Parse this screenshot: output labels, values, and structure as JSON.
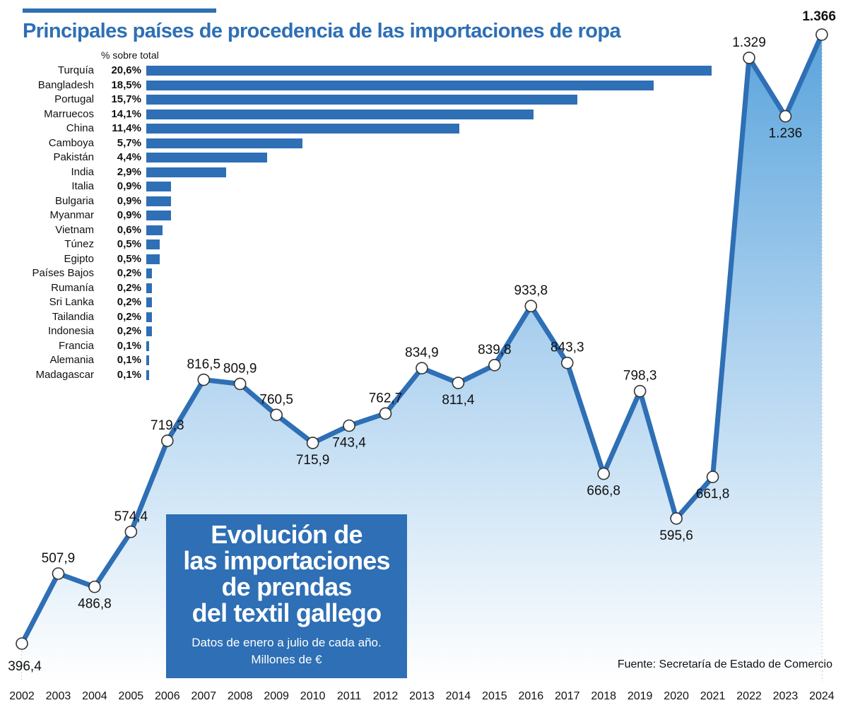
{
  "title": "Principales países de procedencia de las importaciones de ropa",
  "subtitle": "% sobre total",
  "colors": {
    "accent": "#2e6fb5",
    "area_top": "#5aa4dc",
    "text": "#111111"
  },
  "info_box": {
    "title_lines": [
      "Evolución de",
      "las importaciones",
      "de prendas",
      "del textil gallego"
    ],
    "subtitle_lines": [
      "Datos de enero a julio de cada año.",
      "Millones de €"
    ]
  },
  "source": "Fuente: Secretaría de Estado de Comercio",
  "chart_data": [
    {
      "type": "bar",
      "orientation": "horizontal",
      "title": "Principales países de procedencia de las importaciones de ropa",
      "unit_label": "% sobre total",
      "categories": [
        "Turquía",
        "Bangladesh",
        "Portugal",
        "Marruecos",
        "China",
        "Camboya",
        "Pakistán",
        "India",
        "Italia",
        "Bulgaria",
        "Myanmar",
        "Vietnam",
        "Túnez",
        "Egipto",
        "Países Bajos",
        "Rumanía",
        "Sri Lanka",
        "Tailandia",
        "Indonesia",
        "Francia",
        "Alemania",
        "Madagascar"
      ],
      "values": [
        20.6,
        18.5,
        15.7,
        14.1,
        11.4,
        5.7,
        4.4,
        2.9,
        0.9,
        0.9,
        0.9,
        0.6,
        0.5,
        0.5,
        0.2,
        0.2,
        0.2,
        0.2,
        0.2,
        0.1,
        0.1,
        0.1
      ],
      "labels": [
        "20,6%",
        "18,5%",
        "15,7%",
        "14,1%",
        "11,4%",
        "5,7%",
        "4,4%",
        "2,9%",
        "0,9%",
        "0,9%",
        "0,9%",
        "0,6%",
        "0,5%",
        "0,5%",
        "0,2%",
        "0,2%",
        "0,2%",
        "0,2%",
        "0,2%",
        "0,1%",
        "0,1%",
        "0,1%"
      ],
      "xlim": [
        0,
        20.6
      ]
    },
    {
      "type": "area",
      "title": "Evolución de las importaciones de prendas del textil gallego",
      "ylabel": "Millones de €",
      "x": [
        "2002",
        "2003",
        "2004",
        "2005",
        "2006",
        "2007",
        "2008",
        "2009",
        "2010",
        "2011",
        "2012",
        "2013",
        "2014",
        "2015",
        "2016",
        "2017",
        "2018",
        "2019",
        "2020",
        "2021",
        "2022",
        "2023",
        "2024"
      ],
      "values": [
        396.4,
        507.9,
        486.8,
        574.4,
        719.3,
        816.5,
        809.9,
        760.5,
        715.9,
        743.4,
        762.7,
        834.9,
        811.4,
        839.8,
        933.8,
        843.3,
        666.8,
        798.3,
        595.6,
        661.8,
        1329,
        1236,
        1366
      ],
      "labels": [
        "396,4",
        "507,9",
        "486,8",
        "574,4",
        "719,3",
        "816,5",
        "809,9",
        "760,5",
        "715,9",
        "743,4",
        "762,7",
        "834,9",
        "811,4",
        "839,8",
        "933,8",
        "843,3",
        "666,8",
        "798,3",
        "595,6",
        "661,8",
        "1.329",
        "1.236",
        "1.366"
      ],
      "label_side": [
        "below",
        "above",
        "below",
        "above",
        "above",
        "above",
        "above",
        "above",
        "below",
        "below",
        "above",
        "above",
        "below",
        "above",
        "above",
        "above",
        "below",
        "above",
        "below",
        "below",
        "above",
        "below",
        "above"
      ],
      "ylim": [
        396.4,
        1366
      ]
    }
  ]
}
